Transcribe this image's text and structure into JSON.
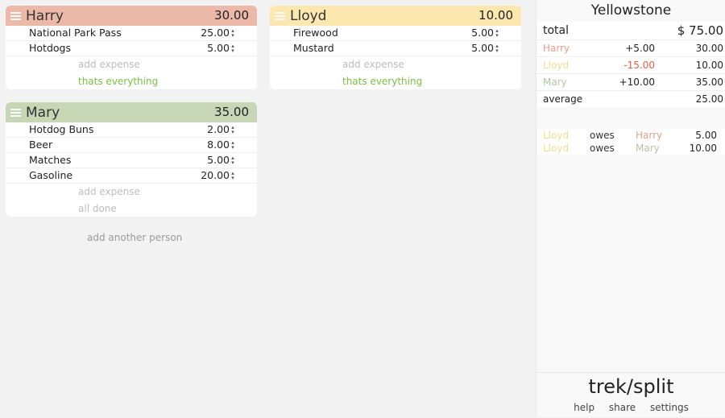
{
  "colors": {
    "harry": "#ecb9a8",
    "lloyd": "#fce8ae",
    "mary": "#c7d6b4",
    "harry_text": "#e8a08c",
    "lloyd_text": "#f6dc8e",
    "mary_text": "#b3c7a2",
    "negative": "#e0604a",
    "positive": "#222222",
    "link_green": "#7ac142"
  },
  "cards": [
    {
      "name": "Harry",
      "total": "30.00",
      "expenses": [
        {
          "desc": "National Park Pass",
          "amount": "25.00"
        },
        {
          "desc": "Hotdogs",
          "amount": "5.00"
        }
      ],
      "add_label": "add expense",
      "done_label": "thats everything"
    },
    {
      "name": "Lloyd",
      "total": "10.00",
      "expenses": [
        {
          "desc": "Firewood",
          "amount": "5.00"
        },
        {
          "desc": "Mustard",
          "amount": "5.00"
        }
      ],
      "add_label": "add expense",
      "done_label": "thats everything"
    },
    {
      "name": "Mary",
      "total": "35.00",
      "expenses": [
        {
          "desc": "Hotdog Buns",
          "amount": "2.00"
        },
        {
          "desc": "Beer",
          "amount": "8.00"
        },
        {
          "desc": "Matches",
          "amount": "5.00"
        },
        {
          "desc": "Gasoline",
          "amount": "20.00"
        }
      ],
      "add_label": "add expense",
      "done_label": "all done"
    }
  ],
  "add_person_label": "add another person",
  "sidebar": {
    "trip_title": "Yellowstone",
    "total_label": "total",
    "total_value": "$ 75.00",
    "balances": [
      {
        "name": "Harry",
        "diff": "+5.00",
        "spent": "30.00"
      },
      {
        "name": "Lloyd",
        "diff": "-15.00",
        "spent": "10.00"
      },
      {
        "name": "Mary",
        "diff": "+10.00",
        "spent": "35.00"
      }
    ],
    "average_label": "average",
    "average_value": "25.00",
    "owes": [
      {
        "from": "Lloyd",
        "verb": "owes",
        "to": "Harry",
        "amount": "5.00"
      },
      {
        "from": "Lloyd",
        "verb": "owes",
        "to": "Mary",
        "amount": "10.00"
      }
    ],
    "brand": "trek/split",
    "links": [
      "help",
      "share",
      "settings"
    ]
  }
}
